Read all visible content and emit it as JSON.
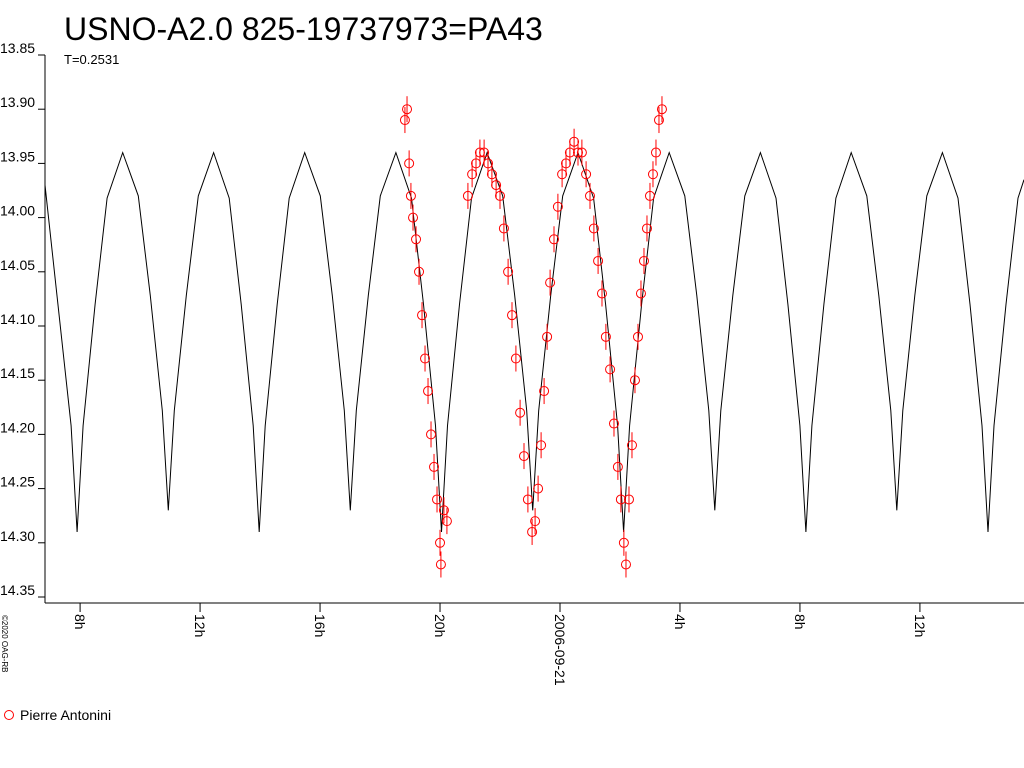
{
  "chart_data": {
    "type": "scatter",
    "title": "USNO-A2.0 825-19737973=PA43",
    "subtitle": "T=0.2531",
    "credit": "©2020 OAG-RB",
    "ylim": [
      13.85,
      14.35
    ],
    "y_inverted": true,
    "yticks": [
      13.85,
      {
        "value": 13.9,
        "label": "13.90"
      },
      13.95,
      {
        "value": 14.0,
        "label": "14.00"
      },
      14.05,
      {
        "value": 14.1,
        "label": "14.10"
      },
      14.15,
      {
        "value": 14.2,
        "label": "14.20"
      },
      14.25,
      {
        "value": 14.3,
        "label": "14.30"
      },
      14.35
    ],
    "xlim": [
      6.83,
      39.47
    ],
    "xticks": [
      {
        "value": 8,
        "label": "8h"
      },
      {
        "value": 12,
        "label": "12h"
      },
      {
        "value": 16,
        "label": "16h"
      },
      {
        "value": 20,
        "label": "20h"
      },
      {
        "value": 24,
        "label": "2006-09-21"
      },
      {
        "value": 28,
        "label": "4h"
      },
      {
        "value": 32,
        "label": "8h"
      },
      {
        "value": 36,
        "label": "12h"
      }
    ],
    "series": [
      {
        "color": "#000000",
        "kind": "line",
        "x": [
          6.83,
          7.7,
          7.9,
          8.1,
          8.5,
          8.9,
          9.42,
          9.94,
          10.34,
          10.74,
          10.94,
          11.14,
          11.54,
          11.94,
          12.45,
          12.97,
          13.37,
          13.77,
          13.97,
          14.17,
          14.57,
          14.97,
          15.49,
          16.01,
          16.41,
          16.81,
          17.01,
          17.21,
          17.61,
          18.01,
          18.53,
          19.05,
          19.45,
          19.85,
          20.05,
          20.25,
          20.65,
          21.05,
          21.57,
          22.09,
          22.49,
          22.89,
          23.09,
          23.29,
          23.69,
          24.09,
          24.6,
          25.12,
          25.52,
          25.92,
          26.12,
          26.32,
          26.72,
          27.12,
          27.64,
          28.16,
          28.56,
          28.96,
          29.16,
          29.36,
          29.76,
          30.16,
          30.68,
          31.2,
          31.6,
          32.0,
          32.2,
          32.4,
          32.8,
          33.2,
          33.71,
          34.23,
          34.63,
          35.03,
          35.23,
          35.43,
          35.83,
          36.23,
          36.75,
          37.27,
          37.67,
          38.07,
          38.27,
          38.47,
          38.87,
          39.27,
          39.47
        ],
        "values": [
          13.97,
          14.192,
          14.29,
          14.192,
          14.08,
          13.982,
          13.94,
          13.98,
          14.072,
          14.178,
          14.27,
          14.178,
          14.072,
          13.98,
          13.94,
          13.982,
          14.08,
          14.192,
          14.29,
          14.192,
          14.08,
          13.982,
          13.94,
          13.98,
          14.072,
          14.178,
          14.27,
          14.178,
          14.072,
          13.98,
          13.94,
          13.982,
          14.08,
          14.192,
          14.29,
          14.192,
          14.08,
          13.982,
          13.94,
          13.98,
          14.072,
          14.178,
          14.27,
          14.178,
          14.072,
          13.98,
          13.94,
          13.982,
          14.08,
          14.192,
          14.29,
          14.192,
          14.08,
          13.982,
          13.94,
          13.98,
          14.072,
          14.178,
          14.27,
          14.178,
          14.072,
          13.98,
          13.94,
          13.982,
          14.08,
          14.192,
          14.29,
          14.192,
          14.08,
          13.982,
          13.94,
          13.98,
          14.072,
          14.178,
          14.27,
          14.178,
          14.072,
          13.98,
          13.94,
          13.982,
          14.08,
          14.192,
          14.29,
          14.192,
          14.08,
          13.982,
          13.965
        ]
      },
      {
        "name": "Pierre Antonini",
        "color": "#ff0000",
        "kind": "points",
        "error": 0.012,
        "x": [
          18.83,
          18.9,
          18.97,
          19.03,
          19.1,
          19.2,
          19.3,
          19.4,
          19.5,
          19.6,
          19.7,
          19.8,
          19.9,
          20.0,
          20.03,
          20.13,
          20.23,
          20.93,
          21.07,
          21.2,
          21.33,
          21.47,
          21.6,
          21.73,
          21.87,
          22.0,
          22.13,
          22.27,
          22.4,
          22.53,
          22.67,
          22.8,
          22.93,
          23.07,
          23.17,
          23.27,
          23.37,
          23.47,
          23.57,
          23.67,
          23.8,
          23.93,
          24.07,
          24.2,
          24.33,
          24.47,
          24.6,
          24.73,
          24.87,
          25.0,
          25.13,
          25.27,
          25.4,
          25.53,
          25.67,
          25.8,
          25.93,
          26.03,
          26.13,
          26.2,
          26.3,
          26.4,
          26.5,
          26.6,
          26.7,
          26.8,
          26.9,
          27.0,
          27.1,
          27.2,
          27.3,
          27.4
        ],
        "values": [
          13.91,
          13.9,
          13.95,
          13.98,
          14.0,
          14.02,
          14.05,
          14.09,
          14.13,
          14.16,
          14.2,
          14.23,
          14.26,
          14.3,
          14.32,
          14.27,
          14.28,
          13.98,
          13.96,
          13.95,
          13.94,
          13.94,
          13.95,
          13.96,
          13.97,
          13.98,
          14.01,
          14.05,
          14.09,
          14.13,
          14.18,
          14.22,
          14.26,
          14.29,
          14.28,
          14.25,
          14.21,
          14.16,
          14.11,
          14.06,
          14.02,
          13.99,
          13.96,
          13.95,
          13.94,
          13.93,
          13.94,
          13.94,
          13.96,
          13.98,
          14.01,
          14.04,
          14.07,
          14.11,
          14.14,
          14.19,
          14.23,
          14.26,
          14.3,
          14.32,
          14.26,
          14.21,
          14.15,
          14.11,
          14.07,
          14.04,
          14.01,
          13.98,
          13.96,
          13.94,
          13.91,
          13.9
        ]
      }
    ]
  }
}
